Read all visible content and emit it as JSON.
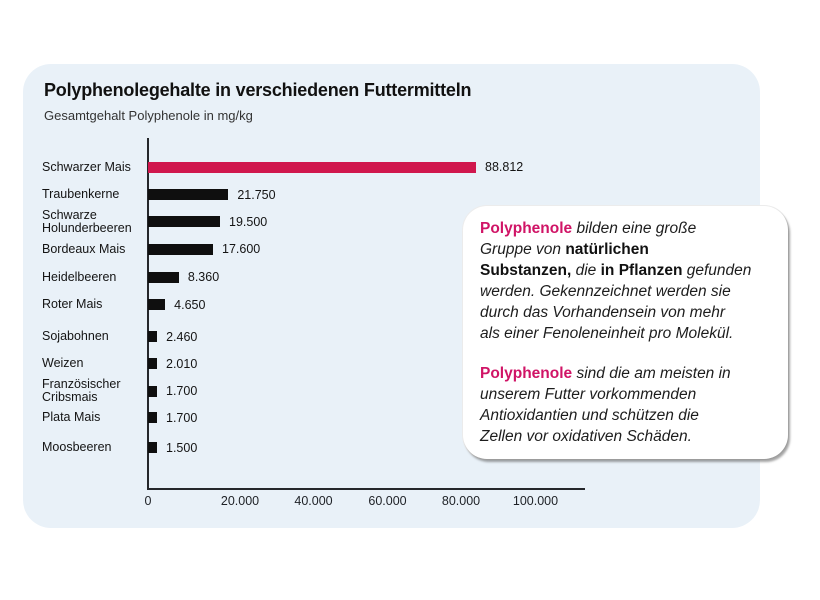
{
  "card": {
    "background_color": "#E9F1F8",
    "title": "Polyphenolegehalte in verschiedenen Futtermitteln",
    "subtitle": "Gesamtgehalt Polyphenole in mg/kg"
  },
  "chart_data": {
    "type": "bar",
    "orientation": "horizontal",
    "title": "Polyphenolegehalte in verschiedenen Futtermitteln",
    "subtitle": "Gesamtgehalt Polyphenole in mg/kg",
    "unit": "mg/kg",
    "xlim": [
      0,
      100000
    ],
    "grid": false,
    "axis_color": "#25272b",
    "bar_color": "#0F0F0F",
    "highlight_color": "#D0174D",
    "x_ticks": [
      "0",
      "20.000",
      "40.000",
      "60.000",
      "80.000",
      "100.000"
    ],
    "categories": [
      "Schwarzer Mais",
      "Traubenkerne",
      "Schwarze Holunderbeeren",
      "Bordeaux Mais",
      "Heidelbeeren",
      "Roter Mais",
      "Sojabohnen",
      "Weizen",
      "Französischer Cribsmais",
      "Plata Mais",
      "Moosbeeren"
    ],
    "values": [
      88812,
      21750,
      19500,
      17600,
      8360,
      4650,
      2460,
      2010,
      1700,
      1700,
      1500
    ],
    "rows": [
      {
        "label_lines": [
          "Schwarzer Mais"
        ],
        "value": 88812,
        "value_label": "88.812",
        "highlight": true
      },
      {
        "label_lines": [
          "Traubenkerne"
        ],
        "value": 21750,
        "value_label": "21.750",
        "highlight": false
      },
      {
        "label_lines": [
          "Schwarze",
          "Holunderbeeren"
        ],
        "value": 19500,
        "value_label": "19.500",
        "highlight": false
      },
      {
        "label_lines": [
          "Bordeaux Mais"
        ],
        "value": 17600,
        "value_label": "17.600",
        "highlight": false
      },
      {
        "label_lines": [
          "Heidelbeeren"
        ],
        "value": 8360,
        "value_label": "8.360",
        "highlight": false
      },
      {
        "label_lines": [
          "Roter Mais"
        ],
        "value": 4650,
        "value_label": "4.650",
        "highlight": false
      },
      {
        "label_lines": [
          "Sojabohnen"
        ],
        "value": 2460,
        "value_label": "2.460",
        "highlight": false
      },
      {
        "label_lines": [
          "Weizen"
        ],
        "value": 2010,
        "value_label": "2.010",
        "highlight": false
      },
      {
        "label_lines": [
          "Französischer",
          "Cribsmais"
        ],
        "value": 1700,
        "value_label": "1.700",
        "highlight": false
      },
      {
        "label_lines": [
          "Plata Mais"
        ],
        "value": 1700,
        "value_label": "1.700",
        "highlight": false
      },
      {
        "label_lines": [
          "Moosbeeren"
        ],
        "value": 1500,
        "value_label": "1.500",
        "highlight": false
      }
    ]
  },
  "info_box": {
    "background_color": "#ffffff",
    "brand_color": "#D01466",
    "paragraphs": [
      {
        "segments": [
          {
            "text": "Polyphenole",
            "style": "brand"
          },
          {
            "text": " bilden eine große\nGruppe von ",
            "style": "italic"
          },
          {
            "text": "natürlichen\nSubstanzen,",
            "style": "bold"
          },
          {
            "text": " die ",
            "style": "italic"
          },
          {
            "text": "in Pflanzen",
            "style": "bold"
          },
          {
            "text": " gefunden\nwerden. Gekennzeichnet werden sie\ndurch das Vorhandensein von mehr\nals einer Fenoleneinheit pro Molekül.",
            "style": "italic"
          }
        ]
      },
      {
        "segments": [
          {
            "text": "Polyphenole",
            "style": "brand"
          },
          {
            "text": " sind die am meisten in\nunserem Futter vorkommenden\nAntioxidantien und schützen die\nZellen vor oxidativen Schäden.",
            "style": "italic"
          }
        ]
      }
    ]
  }
}
